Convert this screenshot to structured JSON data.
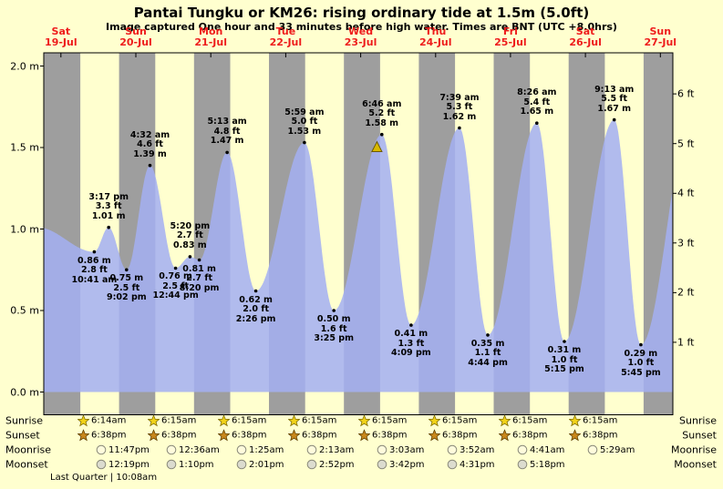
{
  "chart_data": {
    "type": "area",
    "title": "Pantai Tungku or KM26: rising  ordinary tide at 1.5m (5.0ft)",
    "subtitle": "Image captured One hour and 33 minutes before high water. Times are BNT (UTC +8.0hrs)",
    "days": [
      {
        "name": "Sat",
        "date": "19-Jul"
      },
      {
        "name": "Sun",
        "date": "20-Jul"
      },
      {
        "name": "Mon",
        "date": "21-Jul"
      },
      {
        "name": "Tue",
        "date": "22-Jul"
      },
      {
        "name": "Wed",
        "date": "23-Jul"
      },
      {
        "name": "Thu",
        "date": "24-Jul"
      },
      {
        "name": "Fri",
        "date": "25-Jul"
      },
      {
        "name": "Sat",
        "date": "26-Jul"
      },
      {
        "name": "Sun",
        "date": "27-Jul"
      }
    ],
    "y_axis_left": {
      "unit": "m",
      "labels": [
        "2.0 m",
        "1.5 m",
        "1.0 m",
        "0.5 m",
        "0.0 m"
      ],
      "values": [
        2.0,
        1.5,
        1.0,
        0.5,
        0.0
      ]
    },
    "y_axis_right": {
      "unit": "ft",
      "labels": [
        "6 ft",
        "5 ft",
        "4 ft",
        "3 ft",
        "2 ft",
        "1 ft"
      ],
      "values": [
        6,
        5,
        4,
        3,
        2,
        1
      ]
    },
    "ylim_m": [
      0,
      2.08
    ],
    "x_time": {
      "t_max": 201.5,
      "midnight_first_t": 5.5,
      "day_hours": 24
    },
    "night_bands": {
      "sunset_t": 0.13,
      "sunrise_t": 11.73,
      "count": 9
    },
    "tide_events": [
      {
        "type": "low",
        "time": "10:41 am",
        "height_m": 0.86,
        "height_ft": 2.8,
        "t": 16.18,
        "display": [
          "0.86 m",
          "2.8 ft",
          "10:41 am"
        ]
      },
      {
        "type": "high",
        "time": "3:17 pm",
        "height_m": 1.01,
        "height_ft": 3.3,
        "t": 20.78,
        "display": [
          "3:17 pm",
          "3.3 ft",
          "1.01 m"
        ]
      },
      {
        "type": "low",
        "time": "9:02 pm",
        "height_m": 0.75,
        "height_ft": 2.5,
        "t": 26.53,
        "display": [
          "0.75 m",
          "2.5 ft",
          "9:02 pm"
        ]
      },
      {
        "type": "high",
        "time": "4:32 am",
        "height_m": 1.39,
        "height_ft": 4.6,
        "t": 34.03,
        "display": [
          "4:32 am",
          "4.6 ft",
          "1.39 m"
        ]
      },
      {
        "type": "low",
        "time": "12:44 pm",
        "height_m": 0.76,
        "height_ft": 2.5,
        "t": 42.23,
        "display": [
          "0.76 m",
          "2.5 ft",
          "12:44 pm"
        ]
      },
      {
        "type": "high",
        "time": "5:20 pm",
        "height_m": 0.83,
        "height_ft": 2.7,
        "t": 46.83,
        "display": [
          "5:20 pm",
          "2.7 ft",
          "0.83 m"
        ]
      },
      {
        "type": "low",
        "time": "8:20 pm",
        "height_m": 0.81,
        "height_ft": 2.7,
        "t": 49.83,
        "display": [
          "0.81 m",
          "2.7 ft",
          "8:20 pm"
        ]
      },
      {
        "type": "high",
        "time": "5:13 am",
        "height_m": 1.47,
        "height_ft": 4.8,
        "t": 58.72,
        "display": [
          "5:13 am",
          "4.8 ft",
          "1.47 m"
        ]
      },
      {
        "type": "low",
        "time": "2:26 pm",
        "height_m": 0.62,
        "height_ft": 2.0,
        "t": 67.93,
        "display": [
          "0.62 m",
          "2.0 ft",
          "2:26 pm"
        ]
      },
      {
        "type": "high",
        "time": "5:59 am",
        "height_m": 1.53,
        "height_ft": 5.0,
        "t": 83.48,
        "display": [
          "5:59 am",
          "5.0 ft",
          "1.53 m"
        ]
      },
      {
        "type": "low",
        "time": "3:25 pm",
        "height_m": 0.5,
        "height_ft": 1.6,
        "t": 92.92,
        "display": [
          "0.50 m",
          "1.6 ft",
          "3:25 pm"
        ]
      },
      {
        "type": "high",
        "time": "6:46 am",
        "height_m": 1.58,
        "height_ft": 5.2,
        "t": 108.27,
        "display": [
          "6:46 am",
          "5.2 ft",
          "1.58 m"
        ]
      },
      {
        "type": "low",
        "time": "4:09 pm",
        "height_m": 0.41,
        "height_ft": 1.3,
        "t": 117.65,
        "display": [
          "0.41 m",
          "1.3 ft",
          "4:09 pm"
        ]
      },
      {
        "type": "high",
        "time": "7:39 am",
        "height_m": 1.62,
        "height_ft": 5.3,
        "t": 133.15,
        "display": [
          "7:39 am",
          "5.3 ft",
          "1.62 m"
        ]
      },
      {
        "type": "low",
        "time": "4:44 pm",
        "height_m": 0.35,
        "height_ft": 1.1,
        "t": 142.23,
        "display": [
          "0.35 m",
          "1.1 ft",
          "4:44 pm"
        ]
      },
      {
        "type": "high",
        "time": "8:26 am",
        "height_m": 1.65,
        "height_ft": 5.4,
        "t": 157.93,
        "display": [
          "8:26 am",
          "5.4 ft",
          "1.65 m"
        ]
      },
      {
        "type": "low",
        "time": "5:15 pm",
        "height_m": 0.31,
        "height_ft": 1.0,
        "t": 166.75,
        "display": [
          "0.31 m",
          "1.0 ft",
          "5:15 pm"
        ]
      },
      {
        "type": "high",
        "time": "9:13 am",
        "height_m": 1.67,
        "height_ft": 5.5,
        "t": 182.72,
        "display": [
          "9:13 am",
          "5.5 ft",
          "1.67 m"
        ]
      },
      {
        "type": "low",
        "time": "5:45 pm",
        "height_m": 0.29,
        "height_ft": 1.0,
        "t": 191.25,
        "display": [
          "0.29 m",
          "1.0 ft",
          "5:45 pm"
        ]
      }
    ],
    "boundary_points": [
      {
        "t": -2.0,
        "h": 1.01
      },
      {
        "t": 207.6,
        "h": 1.68
      }
    ],
    "current_time_marker": {
      "t": 106.72
    }
  },
  "astro": {
    "sunrise": {
      "label": "Sunrise",
      "times": [
        "6:14am",
        "6:15am",
        "6:15am",
        "6:15am",
        "6:15am",
        "6:15am",
        "6:15am",
        "6:15am"
      ]
    },
    "sunset": {
      "label": "Sunset",
      "times": [
        "6:38pm",
        "6:38pm",
        "6:38pm",
        "6:38pm",
        "6:38pm",
        "6:38pm",
        "6:38pm",
        "6:38pm"
      ]
    },
    "moonrise": {
      "label": "Moonrise",
      "times": [
        "11:47pm",
        "12:36am",
        "1:25am",
        "2:13am",
        "3:03am",
        "3:52am",
        "4:41am",
        "5:29am"
      ]
    },
    "moonset": {
      "label": "Moonset",
      "times": [
        "12:19pm",
        "1:10pm",
        "2:01pm",
        "2:52pm",
        "3:42pm",
        "4:31pm",
        "5:18pm"
      ]
    },
    "moon_phase": "Last Quarter | 10:08am"
  },
  "colors": {
    "background": "#ffffcf",
    "night_band": "#9e9e9e",
    "tide_fill": "#a3aff2",
    "day_label_red": "#ee1c1c",
    "marker_yellow": "#d9b900",
    "frame": "#000000"
  }
}
